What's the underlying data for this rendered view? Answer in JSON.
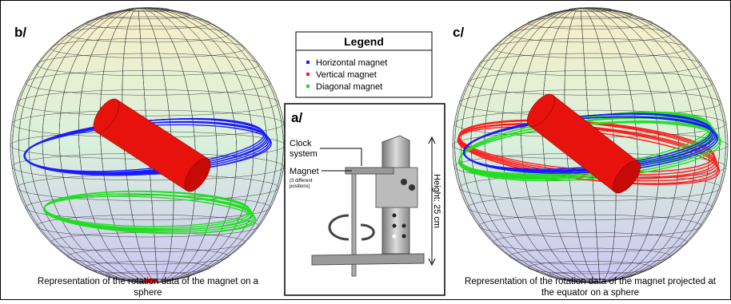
{
  "panels": {
    "b": {
      "label": "b/",
      "caption": [
        "Representation of the rotation data of the magnet on a",
        "sphere"
      ]
    },
    "c": {
      "label": "c/",
      "caption": [
        "Representation of the rotation data of the magnet projected at",
        "the equator on a sphere"
      ]
    },
    "a": {
      "label": "a/",
      "clock_label": [
        "Clock",
        "system"
      ],
      "magnet_label": "Magnet",
      "magnet_note": [
        "(3 different",
        "positions)"
      ],
      "height_label": "Height: 25 cm"
    }
  },
  "legend": {
    "title": "Legend",
    "items": [
      {
        "label": "Horizontal magnet",
        "color": "#1a1aff"
      },
      {
        "label": "Vertical magnet",
        "color": "#ff1a1a"
      },
      {
        "label": "Diagonal magnet",
        "color": "#22dd22"
      }
    ]
  }
}
